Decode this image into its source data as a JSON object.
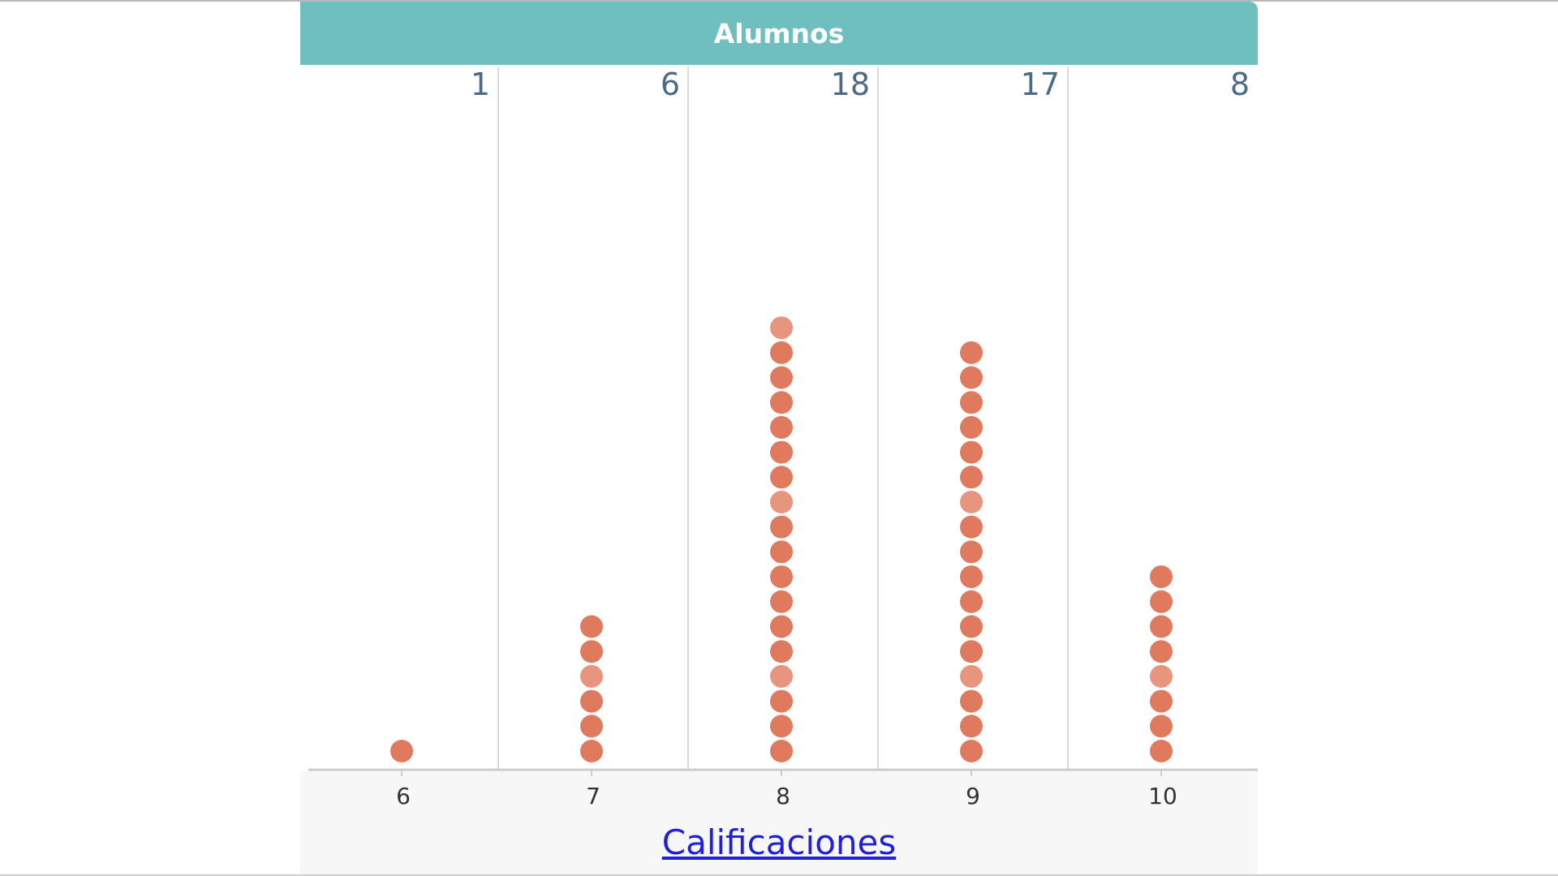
{
  "header": {
    "title": "Alumnos"
  },
  "chart_data": {
    "type": "dot-plot",
    "xlabel": "Calificaciones",
    "categories": [
      "6",
      "7",
      "8",
      "9",
      "10"
    ],
    "values": [
      1,
      6,
      18,
      17,
      8
    ],
    "count_labels": [
      "1",
      "6",
      "18",
      "17",
      "8"
    ],
    "colors": {
      "dot": "#e07a5f",
      "dot_light": "#e8957f",
      "header": "#6fbfbf",
      "divider": "#d9d9d9",
      "axis": "#cccccc"
    }
  }
}
